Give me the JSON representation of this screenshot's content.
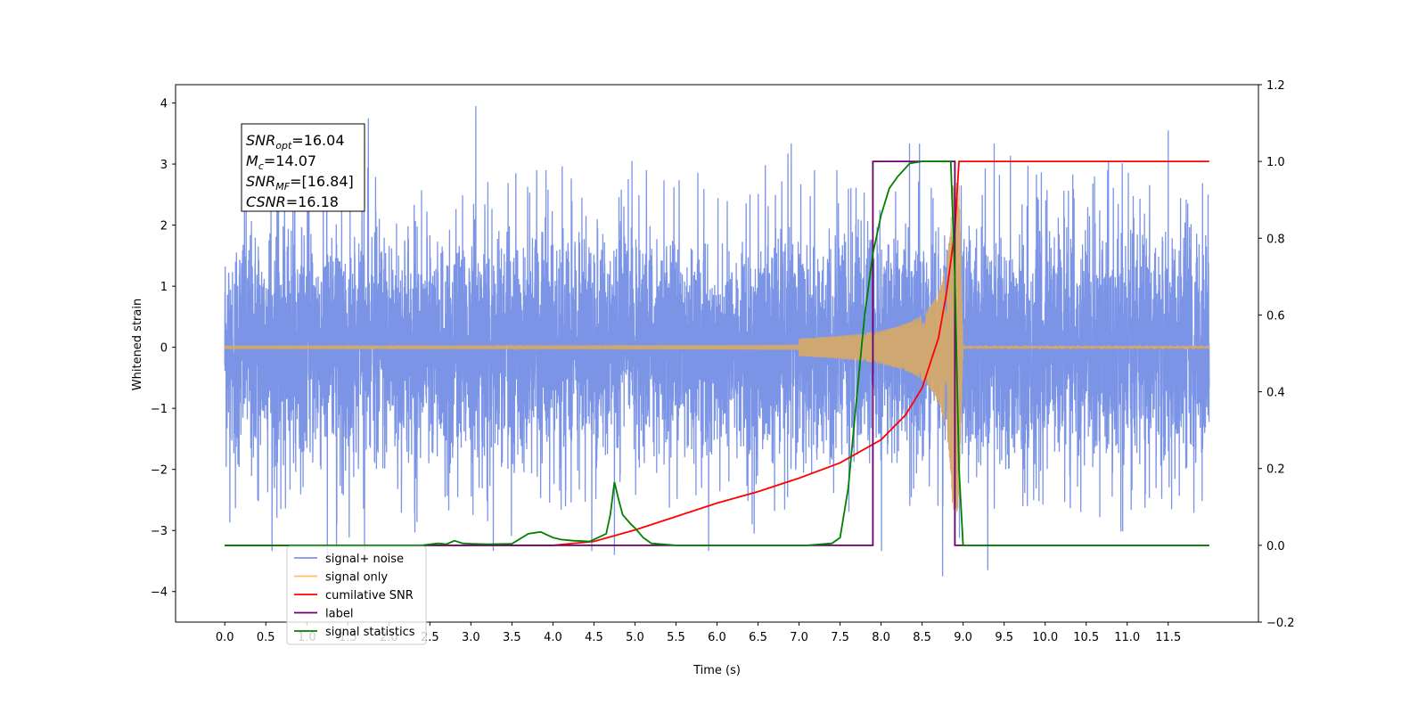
{
  "chart_data": {
    "type": "line",
    "xlabel": "Time (s)",
    "ylabel": "Whitened strain",
    "xlim": [
      -0.6,
      12.6
    ],
    "ylim": [
      -4.5,
      4.3
    ],
    "y2lim": [
      -0.2,
      1.2
    ],
    "x_ticks": [
      "0.0",
      "0.5",
      "1.0",
      "1.5",
      "2.0",
      "2.5",
      "3.0",
      "3.5",
      "4.0",
      "4.5",
      "5.0",
      "5.5",
      "6.0",
      "6.5",
      "7.0",
      "7.5",
      "8.0",
      "8.5",
      "9.0",
      "9.5",
      "10.0",
      "10.5",
      "11.0",
      "11.5"
    ],
    "y_ticks": [
      "4",
      "3",
      "2",
      "1",
      "0",
      "−1",
      "−2",
      "−3",
      "−4"
    ],
    "y2_ticks": [
      "1.2",
      "1.0",
      "0.8",
      "0.6",
      "0.4",
      "0.2",
      "0.0",
      "−0.2"
    ],
    "grid": false,
    "legend_position": "lower-left",
    "annotation": [
      {
        "base": "SNR",
        "sub": "opt",
        "value": "=16.04"
      },
      {
        "base": "M",
        "sub": "c",
        "value": "=14.07"
      },
      {
        "base": "SNR",
        "sub": "MF",
        "value": "=[16.84]"
      },
      {
        "base": "CSNR",
        "sub": "",
        "value": "=16.18"
      }
    ],
    "series": [
      {
        "name": "signal+ noise",
        "axis": "left",
        "color": "#7b94e6",
        "description_x_range": [
          0.0,
          12.0
        ],
        "typical_envelope": [
          -2.3,
          2.3
        ],
        "peaks": [
          [
            3.06,
            3.95
          ],
          [
            1.75,
            3.75
          ],
          [
            11.5,
            3.55
          ],
          [
            8.75,
            -3.75
          ],
          [
            1.25,
            -3.45
          ],
          [
            9.3,
            -3.65
          ],
          [
            4.75,
            -3.4
          ]
        ]
      },
      {
        "name": "signal only",
        "axis": "left",
        "color": "#ffbf60",
        "chirp_start": 0.0,
        "merger_time": 8.95,
        "amplitude_at_start": 0.02,
        "amplitude_at_7.5": 0.25,
        "amplitude_at_8.5": 0.75,
        "amplitude_at_merger": 2.7
      },
      {
        "name": "cumilative SNR",
        "axis": "right",
        "color": "#ff0000",
        "x": [
          0.0,
          4.0,
          4.5,
          5.0,
          5.5,
          6.0,
          6.5,
          7.0,
          7.5,
          8.0,
          8.3,
          8.5,
          8.7,
          8.8,
          8.9,
          8.95,
          9.0,
          12.0
        ],
        "values": [
          0.0,
          0.0,
          0.01,
          0.04,
          0.075,
          0.11,
          0.14,
          0.175,
          0.215,
          0.275,
          0.34,
          0.41,
          0.54,
          0.66,
          0.82,
          1.0,
          1.0,
          1.0
        ]
      },
      {
        "name": "label",
        "axis": "right",
        "color": "#6a006a",
        "x": [
          0.0,
          7.9,
          7.9,
          8.9,
          8.9,
          12.0
        ],
        "values": [
          0.0,
          0.0,
          1.0,
          1.0,
          0.0,
          0.0
        ]
      },
      {
        "name": "signal statistics",
        "axis": "right",
        "color": "#008000",
        "x": [
          0.0,
          2.4,
          2.6,
          2.7,
          2.8,
          2.9,
          3.0,
          3.2,
          3.5,
          3.7,
          3.85,
          4.0,
          4.1,
          4.25,
          4.45,
          4.65,
          4.7,
          4.75,
          4.8,
          4.85,
          4.95,
          5.0,
          5.1,
          5.2,
          5.5,
          7.1,
          7.4,
          7.5,
          7.6,
          7.7,
          7.8,
          7.9,
          8.0,
          8.1,
          8.2,
          8.35,
          8.5,
          8.85,
          8.9,
          8.95,
          9.0,
          12.0
        ],
        "values": [
          0.0,
          0.0,
          0.005,
          0.003,
          0.012,
          0.005,
          0.004,
          0.003,
          0.004,
          0.03,
          0.035,
          0.02,
          0.015,
          0.012,
          0.01,
          0.03,
          0.08,
          0.165,
          0.12,
          0.08,
          0.055,
          0.045,
          0.02,
          0.005,
          0.0,
          0.0,
          0.005,
          0.02,
          0.15,
          0.38,
          0.6,
          0.76,
          0.86,
          0.93,
          0.96,
          0.995,
          1.0,
          1.0,
          0.7,
          0.2,
          0.0,
          0.0
        ]
      }
    ]
  }
}
